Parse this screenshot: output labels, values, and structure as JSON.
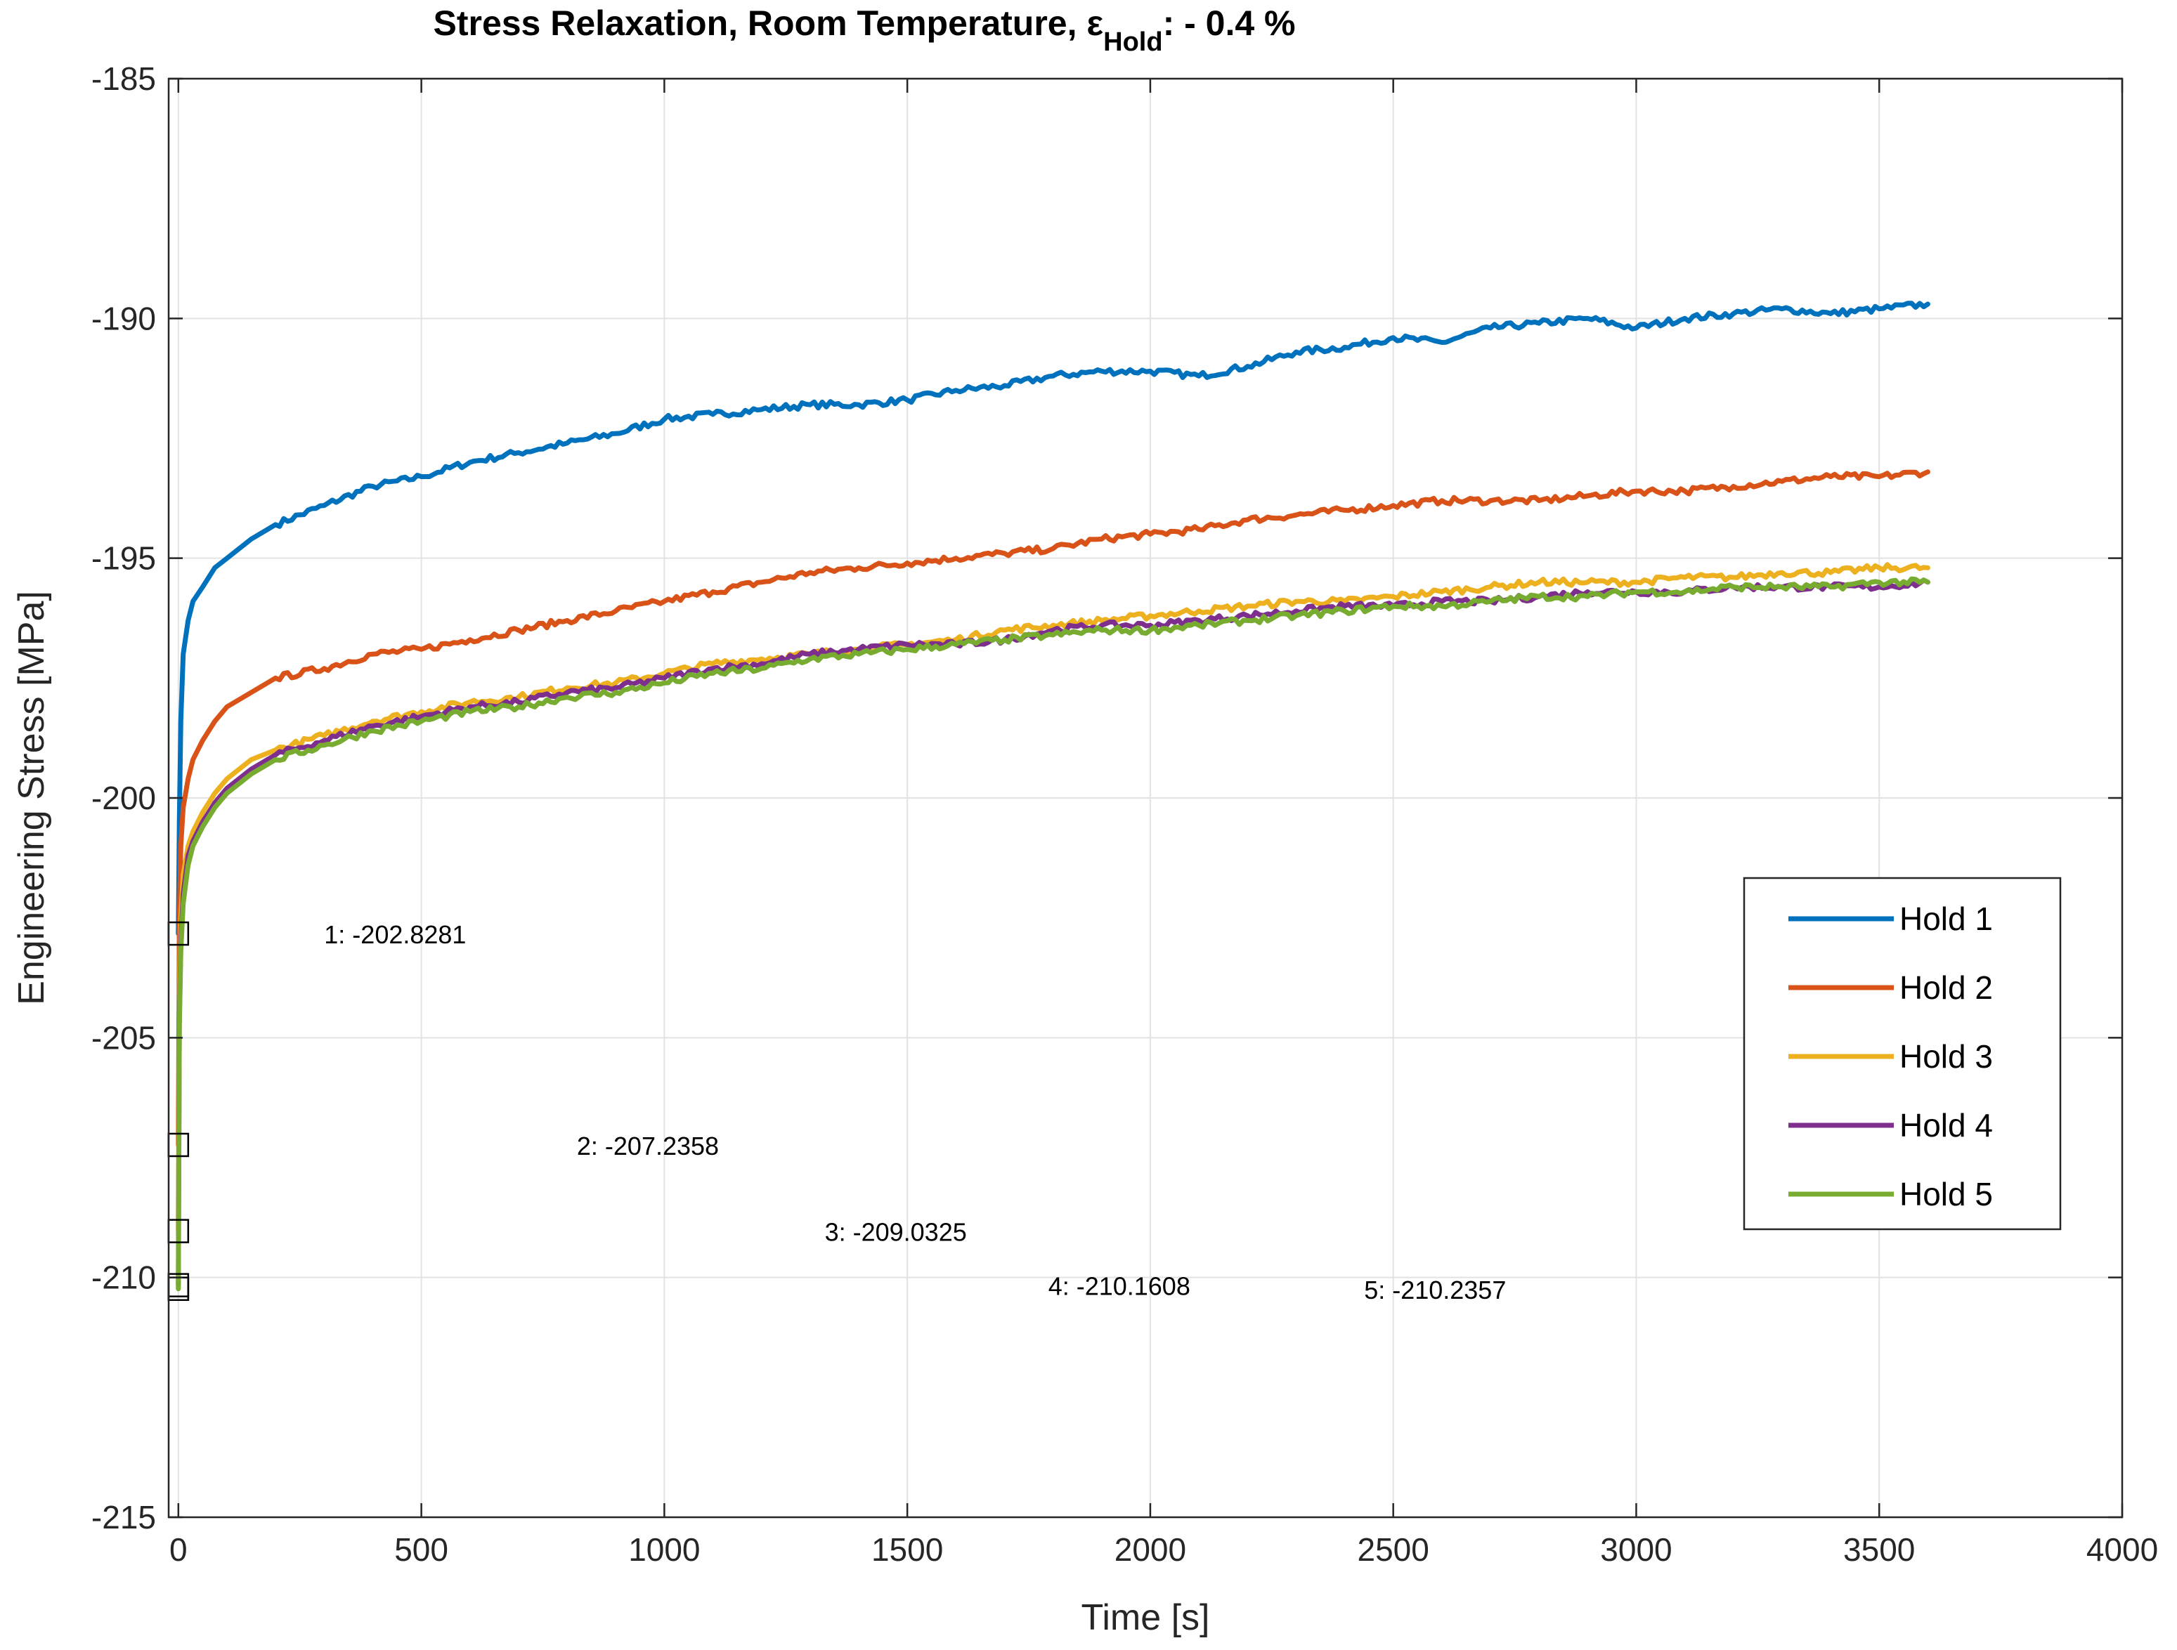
{
  "chart_data": {
    "type": "line",
    "title": "Stress Relaxation, Room Temperature, ε",
    "title_subscript": "Hold",
    "title_suffix": ": - 0.4 %",
    "xlabel": "Time [s]",
    "ylabel": "Engineering Stress [MPa]",
    "xlim": [
      -20,
      4000
    ],
    "ylim": [
      -215,
      -185
    ],
    "xticks": [
      0,
      500,
      1000,
      1500,
      2000,
      2500,
      3000,
      3500,
      4000
    ],
    "yticks": [
      -215,
      -210,
      -205,
      -200,
      -195,
      -190,
      -185
    ],
    "grid": true,
    "legend_position": "right",
    "series": [
      {
        "name": "Hold 1",
        "color": "#0072BD",
        "x": [
          0,
          2,
          5,
          10,
          20,
          30,
          50,
          75,
          100,
          150,
          200,
          300,
          400,
          500,
          600,
          700,
          800,
          900,
          1000,
          1100,
          1200,
          1300,
          1400,
          1500,
          1600,
          1700,
          1800,
          1900,
          2000,
          2100,
          2200,
          2300,
          2400,
          2500,
          2600,
          2700,
          2800,
          2900,
          3000,
          3100,
          3200,
          3300,
          3400,
          3500,
          3600
        ],
        "y": [
          -202.8281,
          -200.5,
          -198.4,
          -197.0,
          -196.3,
          -195.9,
          -195.6,
          -195.2,
          -195.0,
          -194.6,
          -194.3,
          -193.9,
          -193.5,
          -193.3,
          -193.0,
          -192.8,
          -192.6,
          -192.4,
          -192.1,
          -192.0,
          -191.9,
          -191.8,
          -191.8,
          -191.7,
          -191.5,
          -191.4,
          -191.2,
          -191.1,
          -191.1,
          -191.2,
          -191.0,
          -190.7,
          -190.6,
          -190.4,
          -190.5,
          -190.2,
          -190.1,
          -190.0,
          -190.2,
          -190.0,
          -189.9,
          -189.8,
          -189.9,
          -189.8,
          -189.7
        ]
      },
      {
        "name": "Hold 2",
        "color": "#D95319",
        "x": [
          0,
          2,
          5,
          10,
          20,
          30,
          50,
          75,
          100,
          150,
          200,
          300,
          400,
          500,
          600,
          700,
          800,
          900,
          1000,
          1100,
          1200,
          1300,
          1400,
          1500,
          1600,
          1700,
          1800,
          1900,
          2000,
          2100,
          2200,
          2300,
          2400,
          2500,
          2600,
          2700,
          2800,
          2900,
          3000,
          3100,
          3200,
          3300,
          3400,
          3500,
          3600
        ],
        "y": [
          -207.2358,
          -202.5,
          -201.0,
          -200.2,
          -199.6,
          -199.2,
          -198.8,
          -198.4,
          -198.1,
          -197.8,
          -197.5,
          -197.3,
          -197.0,
          -196.9,
          -196.7,
          -196.5,
          -196.3,
          -196.1,
          -195.9,
          -195.7,
          -195.5,
          -195.3,
          -195.2,
          -195.1,
          -195.0,
          -194.9,
          -194.8,
          -194.6,
          -194.5,
          -194.4,
          -194.2,
          -194.1,
          -194.0,
          -193.9,
          -193.8,
          -193.8,
          -193.8,
          -193.7,
          -193.6,
          -193.6,
          -193.5,
          -193.4,
          -193.3,
          -193.3,
          -193.2
        ]
      },
      {
        "name": "Hold 3",
        "color": "#EDB120",
        "x": [
          0,
          2,
          5,
          10,
          20,
          30,
          50,
          75,
          100,
          150,
          200,
          300,
          400,
          500,
          600,
          700,
          800,
          900,
          1000,
          1100,
          1200,
          1300,
          1400,
          1500,
          1600,
          1700,
          1800,
          1900,
          2000,
          2100,
          2200,
          2300,
          2400,
          2500,
          2600,
          2700,
          2800,
          2900,
          3000,
          3100,
          3200,
          3300,
          3400,
          3500,
          3600
        ],
        "y": [
          -209.0325,
          -204.0,
          -202.5,
          -201.6,
          -201.0,
          -200.7,
          -200.3,
          -199.9,
          -199.6,
          -199.2,
          -199.0,
          -198.7,
          -198.4,
          -198.2,
          -198.0,
          -197.9,
          -197.7,
          -197.6,
          -197.4,
          -197.2,
          -197.1,
          -197.0,
          -196.9,
          -196.8,
          -196.7,
          -196.5,
          -196.4,
          -196.3,
          -196.2,
          -196.1,
          -196.0,
          -195.9,
          -195.9,
          -195.8,
          -195.7,
          -195.6,
          -195.5,
          -195.5,
          -195.5,
          -195.4,
          -195.4,
          -195.3,
          -195.3,
          -195.2,
          -195.2
        ]
      },
      {
        "name": "Hold 4",
        "color": "#7E2F8E",
        "x": [
          0,
          2,
          5,
          10,
          20,
          30,
          50,
          75,
          100,
          150,
          200,
          300,
          400,
          500,
          600,
          700,
          800,
          900,
          1000,
          1100,
          1200,
          1300,
          1400,
          1500,
          1600,
          1700,
          1800,
          1900,
          2000,
          2100,
          2200,
          2300,
          2400,
          2500,
          2600,
          2700,
          2800,
          2900,
          3000,
          3100,
          3200,
          3300,
          3400,
          3500,
          3600
        ],
        "y": [
          -210.1608,
          -204.6,
          -203.0,
          -202.0,
          -201.2,
          -200.9,
          -200.5,
          -200.1,
          -199.8,
          -199.4,
          -199.1,
          -198.8,
          -198.5,
          -198.3,
          -198.1,
          -198.0,
          -197.8,
          -197.7,
          -197.5,
          -197.3,
          -197.2,
          -197.0,
          -196.9,
          -196.8,
          -196.8,
          -196.7,
          -196.5,
          -196.4,
          -196.4,
          -196.3,
          -196.2,
          -196.1,
          -196.0,
          -196.0,
          -195.9,
          -195.9,
          -195.8,
          -195.7,
          -195.7,
          -195.7,
          -195.6,
          -195.6,
          -195.6,
          -195.6,
          -195.5
        ]
      },
      {
        "name": "Hold 5",
        "color": "#77AC30",
        "x": [
          0,
          2,
          5,
          10,
          20,
          30,
          50,
          75,
          100,
          150,
          200,
          300,
          400,
          500,
          600,
          700,
          800,
          900,
          1000,
          1100,
          1200,
          1300,
          1400,
          1500,
          1600,
          1700,
          1800,
          1900,
          2000,
          2100,
          2200,
          2300,
          2400,
          2500,
          2600,
          2700,
          2800,
          2900,
          3000,
          3100,
          3200,
          3300,
          3400,
          3500,
          3600
        ],
        "y": [
          -210.2357,
          -204.8,
          -203.2,
          -202.2,
          -201.4,
          -201.0,
          -200.6,
          -200.2,
          -199.9,
          -199.5,
          -199.2,
          -198.9,
          -198.6,
          -198.4,
          -198.2,
          -198.1,
          -197.9,
          -197.8,
          -197.6,
          -197.4,
          -197.3,
          -197.1,
          -197.0,
          -196.9,
          -196.8,
          -196.7,
          -196.6,
          -196.5,
          -196.5,
          -196.4,
          -196.3,
          -196.2,
          -196.1,
          -196.0,
          -196.0,
          -195.9,
          -195.8,
          -195.8,
          -195.7,
          -195.7,
          -195.6,
          -195.6,
          -195.6,
          -195.5,
          -195.5
        ]
      }
    ],
    "markers": [
      {
        "x": 0,
        "y": -202.8281,
        "label": "1: -202.8281",
        "label_x": 300,
        "label_y": -202.8281
      },
      {
        "x": 0,
        "y": -207.2358,
        "label": "2: -207.2358",
        "label_x": 820,
        "label_y": -207.2358
      },
      {
        "x": 0,
        "y": -209.0325,
        "label": "3: -209.0325",
        "label_x": 1330,
        "label_y": -209.0325
      },
      {
        "x": 0,
        "y": -210.2357,
        "label": "",
        "label_x": null,
        "label_y": null
      },
      {
        "x": 0,
        "y": -210.1608,
        "label": "4: -210.1608",
        "label_x": 1790,
        "label_y": -210.1608
      },
      {
        "x": 0,
        "y": -210.2357,
        "label": "5: -210.2357",
        "label_x": 2440,
        "label_y": -210.2357
      }
    ]
  }
}
